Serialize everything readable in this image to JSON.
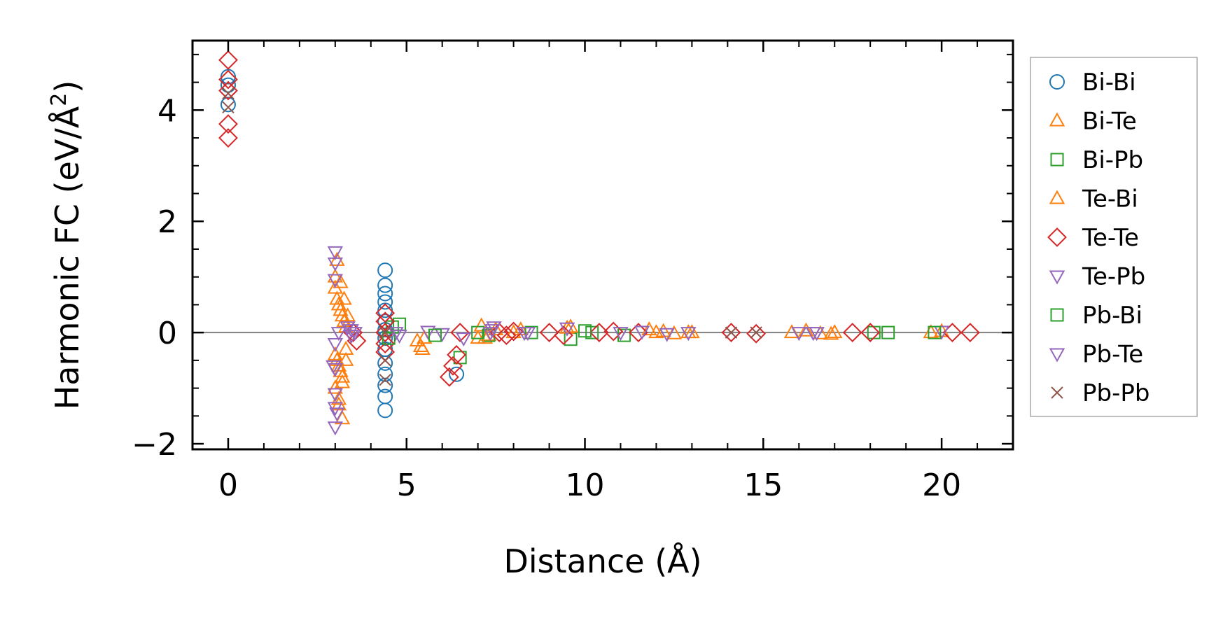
{
  "chart_data": {
    "type": "scatter",
    "title": "",
    "xlabel": "Distance (Å)",
    "ylabel_main": "Harmonic FC (eV/Å",
    "ylabel_sup": "2",
    "ylabel_close": ")",
    "xlim": [
      -1,
      22
    ],
    "ylim": [
      -2.1,
      5.25
    ],
    "xticks": [
      0,
      5,
      10,
      15,
      20
    ],
    "xtick_labels": [
      "0",
      "5",
      "10",
      "15",
      "20"
    ],
    "yticks": [
      -2,
      0,
      2,
      4
    ],
    "ytick_labels": [
      "−2",
      "0",
      "2",
      "4"
    ],
    "grid": false,
    "zero_line": 0,
    "legend_position": "outside-right",
    "series": [
      {
        "name": "Bi-Bi",
        "marker": "circle",
        "color": "#1f77b4",
        "x": [
          0,
          0,
          0,
          4.4,
          4.4,
          4.4,
          4.4,
          4.4,
          4.4,
          4.4,
          4.4,
          4.4,
          4.4,
          4.4,
          4.4,
          4.4,
          4.4,
          6.4
        ],
        "y": [
          4.6,
          4.45,
          4.1,
          1.12,
          0.85,
          0.7,
          0.55,
          0.4,
          0.2,
          0.05,
          -0.1,
          -0.3,
          -0.55,
          -0.75,
          -0.95,
          -1.15,
          -1.4,
          -0.75
        ]
      },
      {
        "name": "Bi-Te",
        "marker": "triangle-up",
        "color": "#ff7f0e",
        "x": [
          3.0,
          3.0,
          3.05,
          3.1,
          3.15,
          3.2,
          3.25,
          3.3,
          3.0,
          3.05,
          3.1,
          3.15,
          3.2,
          3.3,
          3.0,
          3.1,
          3.2,
          5.3,
          5.4,
          5.5,
          7.1,
          7.2,
          7.3,
          8.2,
          9.6,
          11.8,
          12.2,
          12.5,
          12.9,
          15.8,
          16.2,
          16.6,
          17.0,
          19.7,
          20.0
        ],
        "y": [
          1.0,
          0.8,
          0.6,
          0.5,
          0.4,
          0.3,
          0.2,
          0.1,
          -0.4,
          -0.5,
          -0.6,
          -0.7,
          -0.8,
          -0.3,
          -1.0,
          -1.3,
          -1.55,
          -0.15,
          -0.25,
          -0.1,
          0.12,
          -0.1,
          -0.05,
          0.05,
          0.1,
          0.05,
          0.02,
          -0.02,
          0.0,
          0.0,
          0.03,
          -0.02,
          0.0,
          0.0,
          0.02
        ]
      },
      {
        "name": "Bi-Pb",
        "marker": "square",
        "color": "#2ca02c",
        "x": [
          4.6,
          4.8,
          6.5,
          7.3,
          8.5,
          9.6,
          10.2,
          11.1,
          18.1,
          18.5
        ],
        "y": [
          0.1,
          0.15,
          -0.45,
          -0.05,
          0.0,
          -0.12,
          0.0,
          -0.05,
          0.0,
          0.0
        ]
      },
      {
        "name": "Te-Bi",
        "marker": "triangle-up",
        "color": "#ff7f0e",
        "x": [
          3.05,
          3.15,
          3.25,
          3.35,
          3.1,
          3.2,
          3.3,
          5.45,
          7.0,
          7.5,
          8.0,
          9.5,
          12.0,
          13.0,
          16.9
        ],
        "y": [
          1.3,
          0.9,
          0.6,
          0.3,
          -1.2,
          -0.9,
          -0.5,
          -0.3,
          -0.1,
          0.05,
          0.0,
          0.08,
          0.0,
          0.0,
          -0.03
        ]
      },
      {
        "name": "Te-Te",
        "marker": "diamond",
        "color": "#d62728",
        "x": [
          0,
          0,
          0,
          0,
          0,
          3.5,
          3.6,
          4.4,
          4.4,
          4.4,
          4.4,
          4.4,
          6.2,
          6.3,
          6.4,
          6.5,
          7.6,
          7.8,
          8.0,
          9.0,
          9.4,
          10.4,
          10.8,
          11.5,
          14.1,
          14.8,
          17.5,
          18.0,
          20.3,
          20.8
        ],
        "y": [
          4.9,
          4.55,
          4.35,
          3.75,
          3.5,
          0.0,
          -0.15,
          0.35,
          0.2,
          0.0,
          -0.2,
          -0.35,
          -0.8,
          -0.6,
          -0.4,
          0.0,
          0.0,
          -0.05,
          0.02,
          0.0,
          -0.05,
          0.0,
          0.02,
          0.0,
          0.0,
          -0.02,
          0.0,
          0.0,
          0.0,
          0.0
        ]
      },
      {
        "name": "Te-Pb",
        "marker": "triangle-down",
        "color": "#9467bd",
        "x": [
          3.0,
          3.0,
          3.0,
          3.0,
          3.0,
          3.0,
          3.0,
          3.45,
          4.7,
          5.6,
          6.0,
          6.6,
          7.4,
          8.4,
          9.5,
          11.6,
          12.9,
          16.0,
          16.5,
          20.0
        ],
        "y": [
          1.45,
          1.25,
          0.95,
          -0.2,
          -0.65,
          -1.35,
          -1.7,
          0.05,
          0.0,
          0.02,
          -0.02,
          -0.1,
          0.05,
          0.0,
          0.08,
          0.02,
          0.0,
          0.0,
          0.0,
          0.02
        ]
      },
      {
        "name": "Pb-Bi",
        "marker": "square",
        "color": "#2ca02c",
        "x": [
          4.5,
          5.8,
          7.0,
          10.0,
          19.8
        ],
        "y": [
          -0.1,
          -0.05,
          0.0,
          0.03,
          0.0
        ]
      },
      {
        "name": "Pb-Te",
        "marker": "triangle-down",
        "color": "#9467bd",
        "x": [
          2.95,
          3.0,
          3.05,
          3.1,
          3.35,
          3.45,
          3.55,
          4.8,
          7.35,
          7.45,
          8.3,
          11.0,
          12.3,
          16.4
        ],
        "y": [
          -0.6,
          -1.1,
          -1.45,
          0.0,
          0.1,
          -0.05,
          0.0,
          -0.05,
          0.0,
          0.1,
          0.0,
          0.0,
          -0.02,
          0.0
        ]
      },
      {
        "name": "Pb-Pb",
        "marker": "x",
        "color": "#8c564b",
        "x": [
          0,
          0,
          4.4,
          4.4,
          4.4,
          14.1,
          14.8
        ],
        "y": [
          4.3,
          4.05,
          0.0,
          -0.5,
          -0.85,
          0.0,
          0.0
        ]
      }
    ]
  }
}
